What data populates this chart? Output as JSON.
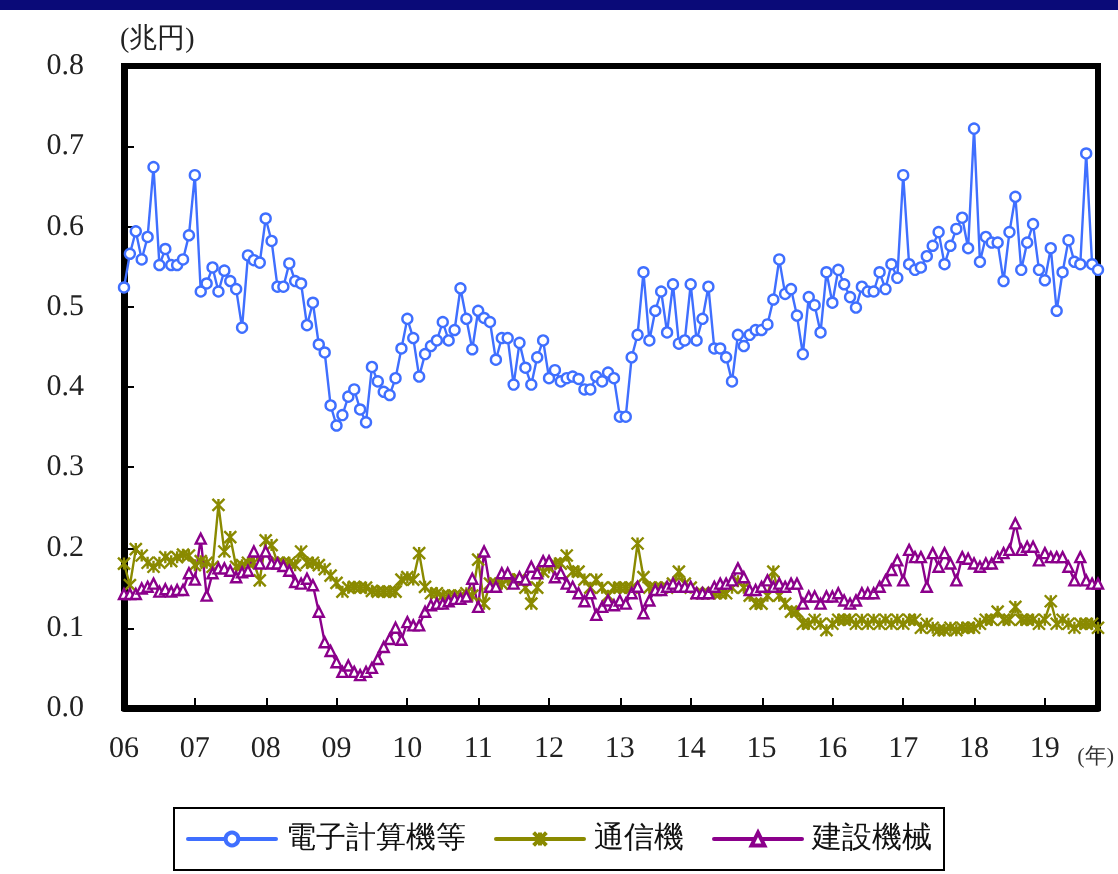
{
  "chart_data": {
    "type": "line",
    "ylabel": "(兆円)",
    "xlabel": "(年)",
    "legend": "bottom",
    "xlim": [
      "2006-01",
      "2019-10"
    ],
    "xticks": [
      {
        "value": "2006-01",
        "label": "06"
      },
      {
        "value": "2007-01",
        "label": "07"
      },
      {
        "value": "2008-01",
        "label": "08"
      },
      {
        "value": "2009-01",
        "label": "09"
      },
      {
        "value": "2010-01",
        "label": "10"
      },
      {
        "value": "2011-01",
        "label": "11"
      },
      {
        "value": "2012-01",
        "label": "12"
      },
      {
        "value": "2013-01",
        "label": "13"
      },
      {
        "value": "2014-01",
        "label": "14"
      },
      {
        "value": "2015-01",
        "label": "15"
      },
      {
        "value": "2016-01",
        "label": "16"
      },
      {
        "value": "2017-01",
        "label": "17"
      },
      {
        "value": "2018-01",
        "label": "18"
      },
      {
        "value": "2019-01",
        "label": "19"
      }
    ],
    "ylim": [
      0,
      0.8
    ],
    "yticks": [
      {
        "value": 0,
        "label": "0.0"
      },
      0.1,
      0.2,
      0.3,
      0.4,
      0.5,
      0.6,
      0.7,
      0.8
    ],
    "x": [
      "2006-01",
      "2006-02",
      "2006-03",
      "2006-04",
      "2006-05",
      "2006-06",
      "2006-07",
      "2006-08",
      "2006-09",
      "2006-10",
      "2006-11",
      "2006-12",
      "2007-01",
      "2007-02",
      "2007-03",
      "2007-04",
      "2007-05",
      "2007-06",
      "2007-07",
      "2007-08",
      "2007-09",
      "2007-10",
      "2007-11",
      "2007-12",
      "2008-01",
      "2008-02",
      "2008-03",
      "2008-04",
      "2008-05",
      "2008-06",
      "2008-07",
      "2008-08",
      "2008-09",
      "2008-10",
      "2008-11",
      "2008-12",
      "2009-01",
      "2009-02",
      "2009-03",
      "2009-04",
      "2009-05",
      "2009-06",
      "2009-07",
      "2009-08",
      "2009-09",
      "2009-10",
      "2009-11",
      "2009-12",
      "2010-01",
      "2010-02",
      "2010-03",
      "2010-04",
      "2010-05",
      "2010-06",
      "2010-07",
      "2010-08",
      "2010-09",
      "2010-10",
      "2010-11",
      "2010-12",
      "2011-01",
      "2011-02",
      "2011-03",
      "2011-04",
      "2011-05",
      "2011-06",
      "2011-07",
      "2011-08",
      "2011-09",
      "2011-10",
      "2011-11",
      "2011-12",
      "2012-01",
      "2012-02",
      "2012-03",
      "2012-04",
      "2012-05",
      "2012-06",
      "2012-07",
      "2012-08",
      "2012-09",
      "2012-10",
      "2012-11",
      "2012-12",
      "2013-01",
      "2013-02",
      "2013-03",
      "2013-04",
      "2013-05",
      "2013-06",
      "2013-07",
      "2013-08",
      "2013-09",
      "2013-10",
      "2013-11",
      "2013-12",
      "2014-01",
      "2014-02",
      "2014-03",
      "2014-04",
      "2014-05",
      "2014-06",
      "2014-07",
      "2014-08",
      "2014-09",
      "2014-10",
      "2014-11",
      "2014-12",
      "2015-01",
      "2015-02",
      "2015-03",
      "2015-04",
      "2015-05",
      "2015-06",
      "2015-07",
      "2015-08",
      "2015-09",
      "2015-10",
      "2015-11",
      "2015-12",
      "2016-01",
      "2016-02",
      "2016-03",
      "2016-04",
      "2016-05",
      "2016-06",
      "2016-07",
      "2016-08",
      "2016-09",
      "2016-10",
      "2016-11",
      "2016-12",
      "2017-01",
      "2017-02",
      "2017-03",
      "2017-04",
      "2017-05",
      "2017-06",
      "2017-07",
      "2017-08",
      "2017-09",
      "2017-10",
      "2017-11",
      "2017-12",
      "2018-01",
      "2018-02",
      "2018-03",
      "2018-04",
      "2018-05",
      "2018-06",
      "2018-07",
      "2018-08",
      "2018-09",
      "2018-10",
      "2018-11",
      "2018-12",
      "2019-01",
      "2019-02",
      "2019-03",
      "2019-04",
      "2019-05",
      "2019-06",
      "2019-07",
      "2019-08",
      "2019-09",
      "2019-10"
    ],
    "series": [
      {
        "name": "電子計算機等",
        "color": "#3f6fff",
        "marker": "circle",
        "values": [
          0.524,
          0.566,
          0.594,
          0.559,
          0.587,
          0.674,
          0.552,
          0.572,
          0.552,
          0.552,
          0.559,
          0.589,
          0.664,
          0.519,
          0.529,
          0.549,
          0.519,
          0.545,
          0.532,
          0.522,
          0.474,
          0.564,
          0.558,
          0.555,
          0.61,
          0.582,
          0.525,
          0.525,
          0.554,
          0.532,
          0.529,
          0.477,
          0.505,
          0.453,
          0.443,
          0.377,
          0.352,
          0.365,
          0.388,
          0.397,
          0.372,
          0.356,
          0.425,
          0.407,
          0.394,
          0.39,
          0.411,
          0.448,
          0.485,
          0.461,
          0.413,
          0.441,
          0.451,
          0.458,
          0.481,
          0.458,
          0.471,
          0.523,
          0.485,
          0.447,
          0.495,
          0.486,
          0.481,
          0.434,
          0.461,
          0.461,
          0.403,
          0.455,
          0.424,
          0.403,
          0.437,
          0.458,
          0.411,
          0.421,
          0.407,
          0.411,
          0.413,
          0.41,
          0.397,
          0.397,
          0.413,
          0.407,
          0.418,
          0.411,
          0.363,
          0.363,
          0.437,
          0.465,
          0.543,
          0.458,
          0.495,
          0.519,
          0.468,
          0.528,
          0.454,
          0.458,
          0.528,
          0.458,
          0.485,
          0.525,
          0.448,
          0.448,
          0.437,
          0.407,
          0.465,
          0.451,
          0.465,
          0.471,
          0.471,
          0.478,
          0.509,
          0.559,
          0.516,
          0.522,
          0.489,
          0.441,
          0.512,
          0.502,
          0.468,
          0.543,
          0.505,
          0.546,
          0.528,
          0.512,
          0.499,
          0.525,
          0.519,
          0.519,
          0.543,
          0.522,
          0.553,
          0.536,
          0.664,
          0.553,
          0.546,
          0.549,
          0.563,
          0.576,
          0.593,
          0.553,
          0.576,
          0.597,
          0.611,
          0.573,
          0.722,
          0.556,
          0.587,
          0.58,
          0.58,
          0.532,
          0.593,
          0.637,
          0.546,
          0.58,
          0.603,
          0.546,
          0.533,
          0.573,
          0.495,
          0.543,
          0.583,
          0.556,
          0.553,
          0.691,
          0.553,
          0.546
        ]
      },
      {
        "name": "通信機",
        "color": "#8a8a00",
        "marker": "cross",
        "values": [
          0.18,
          0.153,
          0.198,
          0.19,
          0.181,
          0.176,
          0.181,
          0.188,
          0.183,
          0.188,
          0.191,
          0.19,
          0.178,
          0.183,
          0.181,
          0.176,
          0.253,
          0.195,
          0.213,
          0.176,
          0.178,
          0.181,
          0.181,
          0.159,
          0.209,
          0.203,
          0.181,
          0.181,
          0.181,
          0.178,
          0.195,
          0.181,
          0.181,
          0.178,
          0.173,
          0.165,
          0.156,
          0.145,
          0.15,
          0.151,
          0.15,
          0.15,
          0.146,
          0.145,
          0.145,
          0.145,
          0.145,
          0.16,
          0.163,
          0.16,
          0.193,
          0.151,
          0.143,
          0.143,
          0.14,
          0.14,
          0.14,
          0.14,
          0.143,
          0.14,
          0.185,
          0.13,
          0.155,
          0.155,
          0.155,
          0.16,
          0.16,
          0.16,
          0.15,
          0.13,
          0.15,
          0.17,
          0.175,
          0.18,
          0.18,
          0.19,
          0.17,
          0.17,
          0.16,
          0.15,
          0.16,
          0.15,
          0.14,
          0.15,
          0.15,
          0.15,
          0.15,
          0.205,
          0.163,
          0.15,
          0.15,
          0.15,
          0.15,
          0.155,
          0.17,
          0.155,
          0.15,
          0.143,
          0.143,
          0.143,
          0.143,
          0.143,
          0.143,
          0.15,
          0.158,
          0.15,
          0.14,
          0.13,
          0.13,
          0.14,
          0.17,
          0.14,
          0.13,
          0.12,
          0.12,
          0.105,
          0.105,
          0.11,
          0.105,
          0.097,
          0.105,
          0.11,
          0.11,
          0.11,
          0.105,
          0.11,
          0.105,
          0.11,
          0.105,
          0.11,
          0.105,
          0.11,
          0.105,
          0.11,
          0.11,
          0.1,
          0.105,
          0.1,
          0.097,
          0.097,
          0.1,
          0.097,
          0.1,
          0.1,
          0.1,
          0.105,
          0.11,
          0.11,
          0.12,
          0.11,
          0.11,
          0.126,
          0.11,
          0.11,
          0.11,
          0.105,
          0.11,
          0.133,
          0.105,
          0.11,
          0.105,
          0.1,
          0.105,
          0.105,
          0.105,
          0.1
        ]
      },
      {
        "name": "建設機械",
        "color": "#8b008b",
        "marker": "triangle",
        "values": [
          0.142,
          0.142,
          0.142,
          0.149,
          0.151,
          0.155,
          0.145,
          0.148,
          0.145,
          0.147,
          0.147,
          0.168,
          0.16,
          0.211,
          0.14,
          0.168,
          0.174,
          0.174,
          0.171,
          0.163,
          0.169,
          0.171,
          0.195,
          0.18,
          0.195,
          0.18,
          0.18,
          0.177,
          0.171,
          0.157,
          0.155,
          0.161,
          0.153,
          0.12,
          0.082,
          0.071,
          0.057,
          0.045,
          0.053,
          0.045,
          0.041,
          0.045,
          0.05,
          0.061,
          0.076,
          0.086,
          0.1,
          0.085,
          0.107,
          0.103,
          0.103,
          0.12,
          0.128,
          0.13,
          0.13,
          0.133,
          0.136,
          0.136,
          0.139,
          0.161,
          0.126,
          0.195,
          0.151,
          0.151,
          0.168,
          0.168,
          0.155,
          0.163,
          0.16,
          0.176,
          0.168,
          0.183,
          0.183,
          0.163,
          0.168,
          0.155,
          0.151,
          0.143,
          0.133,
          0.143,
          0.116,
          0.126,
          0.134,
          0.128,
          0.134,
          0.13,
          0.143,
          0.151,
          0.118,
          0.134,
          0.147,
          0.147,
          0.151,
          0.155,
          0.151,
          0.151,
          0.151,
          0.143,
          0.143,
          0.143,
          0.151,
          0.155,
          0.155,
          0.159,
          0.174,
          0.163,
          0.147,
          0.147,
          0.151,
          0.159,
          0.151,
          0.155,
          0.151,
          0.155,
          0.155,
          0.13,
          0.139,
          0.139,
          0.13,
          0.139,
          0.139,
          0.143,
          0.134,
          0.13,
          0.134,
          0.143,
          0.143,
          0.143,
          0.151,
          0.159,
          0.172,
          0.184,
          0.159,
          0.197,
          0.188,
          0.188,
          0.151,
          0.193,
          0.176,
          0.193,
          0.18,
          0.159,
          0.188,
          0.186,
          0.18,
          0.176,
          0.18,
          0.18,
          0.188,
          0.193,
          0.197,
          0.23,
          0.197,
          0.201,
          0.201,
          0.184,
          0.193,
          0.188,
          0.188,
          0.188,
          0.176,
          0.159,
          0.188,
          0.159,
          0.155,
          0.155
        ]
      }
    ]
  }
}
